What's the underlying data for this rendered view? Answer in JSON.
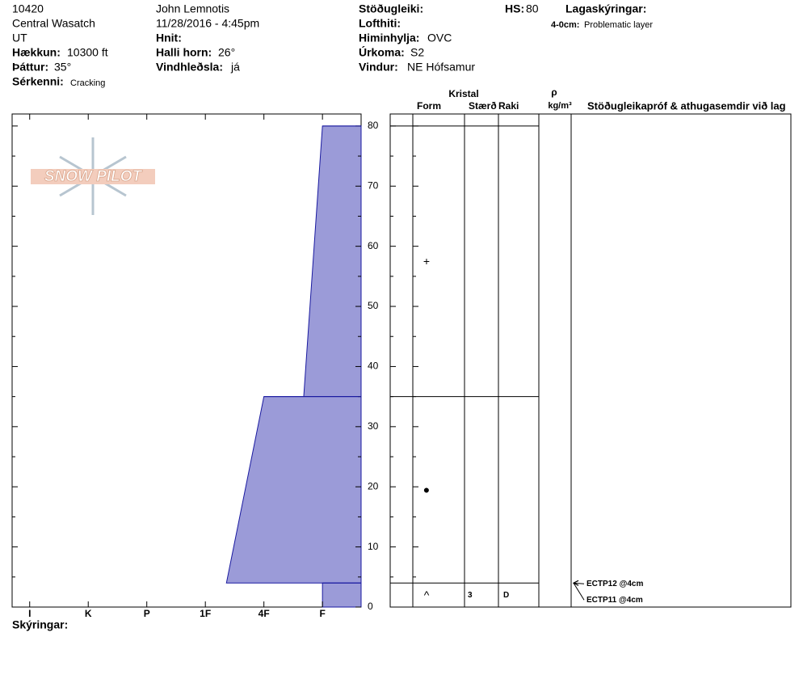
{
  "header": {
    "pit_id": "10420",
    "location": "Central Wasatch",
    "state": "UT",
    "elevation": {
      "label": "Hækkun:",
      "value": "10300 ft"
    },
    "aspect": {
      "label": "Þáttur:",
      "value": "35°"
    },
    "feature": {
      "label": "Sérkenni:",
      "value": "Cracking"
    },
    "observer": "John  Lemnotis",
    "datetime": "11/28/2016 - 4:45pm",
    "coords": {
      "label": "Hnit:"
    },
    "slope": {
      "label": "Halli horn:",
      "value": "26°"
    },
    "wind_loading": {
      "label": "Vindhleðsla:",
      "value": "já"
    },
    "stability": {
      "label": "Stöðugleiki:"
    },
    "air_temp": {
      "label": "Lofthiti:"
    },
    "sky": {
      "label": "Himinhylja:",
      "value": "OVC"
    },
    "precip": {
      "label": "Úrkoma:",
      "value": "S2"
    },
    "wind": {
      "label": "Vindur:",
      "value": "NE Hófsamur"
    },
    "hs": {
      "label": "HS:",
      "value": "80"
    },
    "layer_notes": {
      "label": "Lagaskýringar:",
      "items": [
        {
          "range": "4-0cm:",
          "text": "Problematic layer"
        }
      ]
    }
  },
  "logo": "SNOW PILOT",
  "profile": {
    "ylim": [
      0,
      82
    ],
    "yticks": [
      0,
      10,
      20,
      30,
      40,
      50,
      60,
      70,
      80
    ],
    "yminorticks": [
      5,
      15,
      25,
      35,
      45,
      55,
      65,
      75
    ],
    "xlim": [
      6.3,
      0.34
    ],
    "xticks": [
      {
        "value": 6,
        "label": "I"
      },
      {
        "value": 5,
        "label": "K"
      },
      {
        "value": 4,
        "label": "P"
      },
      {
        "value": 3,
        "label": "1F"
      },
      {
        "value": 2,
        "label": "4F"
      },
      {
        "value": 1,
        "label": "F"
      }
    ],
    "color": "#9b9bd8",
    "layers": [
      {
        "top": 80,
        "bottom": 35,
        "hardness_top": 1,
        "hardness_bottom": 1.32
      },
      {
        "top": 35,
        "bottom": 4,
        "hardness_top": 2,
        "hardness_bottom": 2.64
      },
      {
        "top": 4,
        "bottom": 0,
        "hardness_top": 1,
        "hardness_bottom": 1
      }
    ]
  },
  "table": {
    "headers": {
      "crystal": "Kristal",
      "form": "Form",
      "size": "Stærð",
      "moisture": "Raki",
      "density_symbol": "ρ",
      "density_unit": "kg/m³",
      "tests": "Stöðugleikapróf & athugasemdir við lag"
    },
    "layers": [
      {
        "form": "+"
      },
      {
        "form": "●"
      },
      {
        "form": "^",
        "size": "3",
        "moisture": "D"
      }
    ],
    "tests": [
      {
        "text": "ECTP12 @4cm",
        "depth": 4
      },
      {
        "text": "ECTP11 @4cm",
        "depth": 4
      }
    ]
  },
  "footer": {
    "notes": "Skýringar:"
  }
}
